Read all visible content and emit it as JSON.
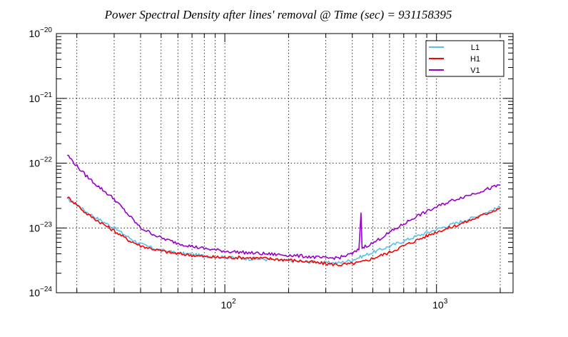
{
  "chart_data": {
    "type": "line",
    "title": "Power Spectral Density after lines' removal @ Time (sec) = 931158395",
    "xlabel": "",
    "ylabel": "",
    "xscale": "log",
    "yscale": "log",
    "xlim": [
      16,
      2300
    ],
    "ylim": [
      1e-24,
      1e-20
    ],
    "grid": true,
    "legend_position": "top-right",
    "x_ticks": [
      {
        "value": 100,
        "base": "10",
        "exp": "2"
      },
      {
        "value": 1000,
        "base": "10",
        "exp": "3"
      }
    ],
    "y_ticks": [
      {
        "value": 1e-24,
        "base": "10",
        "exp": "−24"
      },
      {
        "value": 1e-23,
        "base": "10",
        "exp": "−23"
      },
      {
        "value": 1e-22,
        "base": "10",
        "exp": "−22"
      },
      {
        "value": 1e-21,
        "base": "10",
        "exp": "−21"
      },
      {
        "value": 1e-20,
        "base": "10",
        "exp": "−20"
      }
    ],
    "series": [
      {
        "name": "L1",
        "color": "#5bc0eb",
        "x": [
          18,
          20,
          22,
          25,
          30,
          35,
          40,
          50,
          60,
          70,
          80,
          100,
          120,
          150,
          200,
          250,
          300,
          350,
          400,
          450,
          500,
          600,
          700,
          800,
          1000,
          1200,
          1500,
          2000
        ],
        "y": [
          2.8e-23,
          2.3e-23,
          1.8e-23,
          1.4e-23,
          1e-23,
          7.2e-24,
          5.6e-24,
          4.5e-24,
          4.1e-24,
          3.9e-24,
          3.7e-24,
          3.5e-24,
          3.4e-24,
          3.3e-24,
          3.1e-24,
          3e-24,
          2.9e-24,
          2.9e-24,
          3.2e-24,
          3.7e-24,
          4.2e-24,
          5.2e-24,
          6.3e-24,
          7.4e-24,
          9.5e-24,
          1.15e-23,
          1.45e-23,
          2.1e-23
        ]
      },
      {
        "name": "H1",
        "color": "#ff0000",
        "x": [
          18,
          20,
          22,
          25,
          30,
          35,
          40,
          50,
          60,
          70,
          80,
          100,
          120,
          150,
          200,
          250,
          300,
          350,
          400,
          450,
          500,
          600,
          700,
          800,
          1000,
          1200,
          1500,
          2000
        ],
        "y": [
          3e-23,
          2.3e-23,
          1.7e-23,
          1.3e-23,
          9e-24,
          6.5e-24,
          5.3e-24,
          4.4e-24,
          4e-24,
          3.8e-24,
          3.6e-24,
          3.5e-24,
          3.5e-24,
          3.4e-24,
          3.2e-24,
          3e-24,
          2.8e-24,
          2.7e-24,
          2.8e-24,
          3e-24,
          3.4e-24,
          4.2e-24,
          5.3e-24,
          6.4e-24,
          8.7e-24,
          1.05e-23,
          1.38e-23,
          2.05e-23
        ]
      },
      {
        "name": "V1",
        "color": "#9900cc",
        "x": [
          18,
          20,
          22,
          25,
          30,
          35,
          40,
          50,
          60,
          70,
          80,
          100,
          120,
          150,
          200,
          250,
          300,
          350,
          400,
          430,
          440,
          445,
          450,
          460,
          500,
          600,
          700,
          800,
          1000,
          1200,
          1500,
          2000
        ],
        "y": [
          1.35e-22,
          9e-23,
          6.5e-23,
          4.5e-23,
          2.8e-23,
          1.6e-23,
          1e-23,
          7e-24,
          5.8e-24,
          5.2e-24,
          4.8e-24,
          4.4e-24,
          4.2e-24,
          4e-24,
          3.8e-24,
          3.6e-24,
          3.4e-24,
          3.5e-24,
          4e-24,
          4.6e-24,
          1.7e-23,
          5e-24,
          5e-24,
          5.2e-24,
          5.8e-24,
          8.5e-24,
          1.15e-23,
          1.5e-23,
          2.1e-23,
          2.7e-23,
          3.4e-23,
          4.6e-23
        ]
      }
    ]
  }
}
